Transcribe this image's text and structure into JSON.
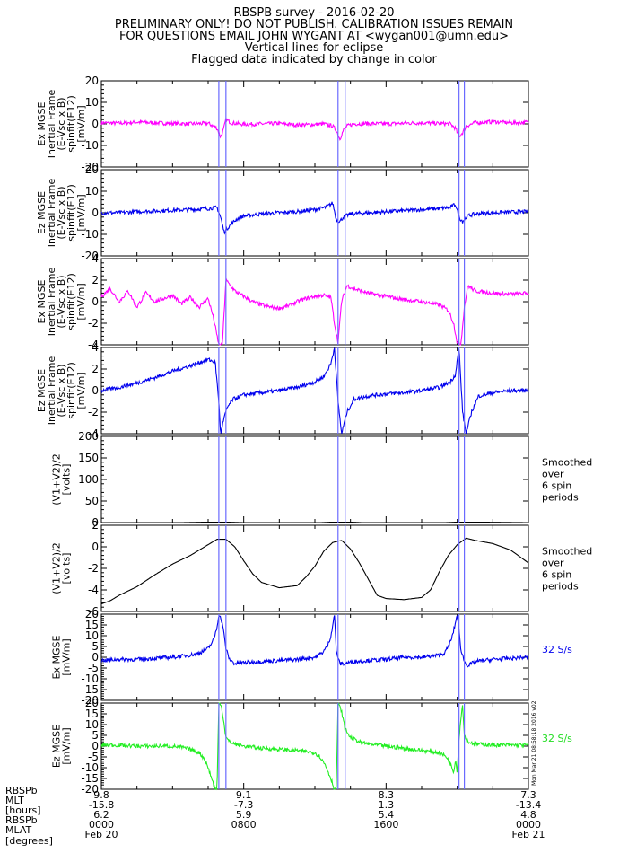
{
  "header": {
    "title": "RBSPB survey  -  2016-02-20",
    "warning1": "PRELIMINARY ONLY! DO NOT PUBLISH. CALIBRATION ISSUES REMAIN",
    "warning2": "FOR QUESTIONS EMAIL JOHN WYGANT AT <wygan001@umn.edu>",
    "note1": "Vertical lines for eclipse",
    "note2": "Flagged data indicated by change in color"
  },
  "side_stamp": "Mon Mar 21 08:58:18 2016 v02",
  "colors": {
    "magenta": "#ff00ff",
    "blue": "#0000ee",
    "green": "#22ee22",
    "black": "#000000",
    "eclipse": "#6a6aff",
    "text_blue": "#0000ee",
    "text_green": "#22dd22"
  },
  "chart_data": {
    "type": "line",
    "x_range_hours": [
      0,
      24
    ],
    "eclipse_lines_hours": [
      6.6,
      7.0,
      13.3,
      13.7,
      20.1,
      20.4
    ],
    "panels": [
      {
        "ylabel": [
          "Ex MGSE",
          "Inertial Frame",
          "(E-Vsc x B)",
          "spinfit(E12)",
          "[mV/m]"
        ],
        "ylim": [
          -20,
          20
        ],
        "yticks": [
          -20,
          -10,
          0,
          10,
          20
        ],
        "color": "magenta",
        "side_text": [],
        "series": {
          "name": "",
          "x": [
            0,
            1,
            2,
            3,
            4,
            5,
            6,
            6.5,
            6.7,
            6.85,
            7.0,
            7.3,
            8,
            9,
            10,
            11,
            12,
            12.5,
            13.0,
            13.2,
            13.4,
            13.6,
            13.8,
            14.2,
            15,
            16,
            17,
            18,
            19,
            19.6,
            19.9,
            20.1,
            20.3,
            20.5,
            21,
            22,
            23,
            24
          ],
          "y": [
            0.5,
            0.3,
            0.8,
            0.5,
            0.2,
            0.0,
            0.3,
            -2,
            -6,
            -3,
            2,
            0.5,
            -0.2,
            0.0,
            0.2,
            -0.5,
            -0.3,
            0.0,
            -1,
            -3,
            -7,
            -3,
            -1,
            0,
            0.2,
            0.0,
            0.3,
            0.5,
            0.2,
            0.0,
            -2,
            -6,
            -4,
            -1,
            0.5,
            1.0,
            0.5,
            0.8
          ]
        }
      },
      {
        "ylabel": [
          "Ez MGSE",
          "Inertial Frame",
          "(E-Vsc x B)",
          "spinfit(E12)",
          "[mV/m]"
        ],
        "ylim": [
          -20,
          20
        ],
        "yticks": [
          -20,
          -10,
          0,
          10,
          20
        ],
        "color": "blue",
        "side_text": [],
        "series": {
          "name": "",
          "x": [
            0,
            1,
            2,
            3,
            4,
            5,
            6,
            6.5,
            6.7,
            6.9,
            7.2,
            7.6,
            8,
            9,
            10,
            11,
            12,
            12.6,
            13.0,
            13.2,
            13.4,
            13.6,
            14,
            15,
            16,
            17,
            18,
            19,
            19.6,
            19.9,
            20.1,
            20.3,
            20.6,
            21,
            22,
            23,
            24
          ],
          "y": [
            0,
            0,
            0.5,
            0.8,
            1.2,
            1.5,
            2.0,
            2.5,
            -2,
            -9,
            -6,
            -3,
            -1.5,
            -0.5,
            0,
            0.5,
            1.5,
            2.5,
            4.5,
            -3,
            -4,
            -2,
            -0.5,
            0,
            0.5,
            1,
            1.5,
            2,
            2.5,
            4,
            -2,
            -4,
            -1.5,
            -0.5,
            0,
            0.3,
            0.5
          ]
        }
      },
      {
        "ylabel": [
          "Ex MGSE",
          "Inertial Frame",
          "(E-Vsc x B)",
          "spinfit(E12)",
          "[mV/m]"
        ],
        "ylim": [
          -4,
          4
        ],
        "yticks": [
          -4,
          -2,
          0,
          2,
          4
        ],
        "color": "magenta",
        "side_text": [],
        "series": {
          "name": "",
          "x": [
            0,
            0.5,
            1,
            1.5,
            2,
            2.5,
            3,
            3.5,
            4,
            4.5,
            5,
            5.5,
            6,
            6.3,
            6.6,
            6.8,
            7.0,
            7.2,
            7.5,
            8,
            8.5,
            9,
            9.5,
            10,
            10.5,
            11,
            11.5,
            12,
            12.5,
            12.9,
            13.1,
            13.3,
            13.5,
            13.8,
            14.2,
            15,
            16,
            17,
            18,
            19,
            19.5,
            19.8,
            20.0,
            20.2,
            20.4,
            20.6,
            21,
            22,
            23,
            24
          ],
          "y": [
            0.5,
            1.2,
            0.0,
            1.0,
            -0.5,
            0.8,
            0.0,
            0.3,
            0.6,
            -0.2,
            0.4,
            -0.5,
            0.3,
            -1.5,
            -4.0,
            -4.0,
            2.0,
            1.6,
            1.0,
            0.5,
            0.0,
            -0.3,
            -0.5,
            -0.6,
            -0.4,
            0.0,
            0.3,
            0.5,
            0.6,
            0.4,
            -2.0,
            -3.8,
            0.0,
            1.5,
            1.2,
            0.8,
            0.5,
            0.2,
            0.0,
            -0.3,
            -0.8,
            -2.0,
            -3.8,
            -4.0,
            -0.5,
            1.5,
            1.0,
            0.8,
            0.7,
            0.8
          ]
        }
      },
      {
        "ylabel": [
          "Ez MGSE",
          "Inertial Frame",
          "(E-Vsc x B)",
          "spinfit(E12)",
          "[mV/m]"
        ],
        "ylim": [
          -4,
          4
        ],
        "yticks": [
          -4,
          -2,
          0,
          2,
          4
        ],
        "color": "blue",
        "side_text": [],
        "series": {
          "name": "",
          "x": [
            0,
            1,
            2,
            3,
            4,
            5,
            5.5,
            6,
            6.4,
            6.6,
            6.7,
            6.9,
            7.1,
            7.4,
            8,
            9,
            10,
            11,
            12,
            12.5,
            12.9,
            13.1,
            13.3,
            13.5,
            13.8,
            14.2,
            15,
            16,
            17,
            18,
            19,
            19.6,
            19.9,
            20.1,
            20.3,
            20.5,
            20.8,
            21.2,
            22,
            23,
            24
          ],
          "y": [
            0,
            0.3,
            0.7,
            1.2,
            1.8,
            2.3,
            2.6,
            2.9,
            2.6,
            -1.0,
            -4.0,
            -2.5,
            -1.5,
            -0.8,
            -0.4,
            -0.2,
            0.0,
            0.3,
            0.8,
            1.3,
            2.5,
            4.0,
            -1.0,
            -4.0,
            -2.0,
            -0.8,
            -0.5,
            -0.3,
            -0.2,
            0.0,
            0.3,
            0.8,
            1.5,
            4.0,
            -2.0,
            -4.0,
            -2.0,
            -0.5,
            -0.2,
            0.0,
            0.0
          ]
        }
      },
      {
        "ylabel": [
          "(V1+V2)/2",
          "[volts]"
        ],
        "ylim": [
          0,
          200
        ],
        "yticks": [
          0,
          50,
          100,
          150,
          200
        ],
        "color": "black",
        "side_text": [
          "Smoothed",
          "over",
          "6 spin",
          "periods"
        ],
        "series": {
          "name": "",
          "x": [
            0,
            3,
            6,
            7,
            9,
            11,
            13,
            14,
            16,
            18,
            20,
            21,
            24
          ],
          "y": [
            -3,
            -1,
            1,
            1,
            -1,
            -2,
            1,
            1,
            -2,
            -2,
            1,
            1,
            0
          ]
        }
      },
      {
        "ylabel": [
          "(V1+V2)/2",
          "[volts]"
        ],
        "ylim": [
          -6,
          2
        ],
        "yticks": [
          -6,
          -4,
          -2,
          0,
          2
        ],
        "color": "black",
        "side_text": [
          "Smoothed",
          "over",
          "6 spin",
          "periods"
        ],
        "series": {
          "name": "",
          "x": [
            0,
            0.5,
            1,
            2,
            3,
            4,
            5,
            5.5,
            6,
            6.5,
            7.0,
            7.5,
            8,
            8.5,
            9,
            10,
            11,
            11.5,
            12,
            12.5,
            13,
            13.5,
            14,
            14.5,
            15,
            15.5,
            16,
            17,
            18,
            18.5,
            19,
            19.5,
            20,
            20.5,
            21,
            22,
            23,
            24
          ],
          "y": [
            -5.3,
            -5.0,
            -4.5,
            -3.7,
            -2.6,
            -1.6,
            -0.8,
            -0.3,
            0.2,
            0.7,
            0.7,
            0.0,
            -1.3,
            -2.5,
            -3.3,
            -3.8,
            -3.6,
            -2.8,
            -1.8,
            -0.4,
            0.4,
            0.6,
            -0.2,
            -1.5,
            -3.0,
            -4.5,
            -4.8,
            -4.9,
            -4.7,
            -4.0,
            -2.3,
            -0.8,
            0.2,
            0.8,
            0.6,
            0.3,
            -0.3,
            -1.5
          ]
        }
      },
      {
        "ylabel": [
          "Ex MGSE",
          "[mV/m]"
        ],
        "ylim": [
          -20,
          20
        ],
        "yticks": [
          -20,
          -15,
          -10,
          -5,
          0,
          5,
          10,
          15,
          20
        ],
        "color": "blue",
        "side_text": [
          "32 S/s"
        ],
        "side_color": "text_blue",
        "series": {
          "name": "",
          "x": [
            0,
            1,
            2,
            3,
            4,
            5,
            5.5,
            6.0,
            6.3,
            6.5,
            6.6,
            6.8,
            7.0,
            7.2,
            7.5,
            8,
            9,
            10,
            11,
            12,
            12.4,
            12.7,
            12.9,
            13.1,
            13.2,
            13.4,
            13.6,
            13.9,
            14.2,
            15,
            16,
            17,
            18,
            19,
            19.3,
            19.5,
            19.7,
            19.9,
            20.0,
            20.2,
            20.4,
            20.6,
            21,
            22,
            23,
            24
          ],
          "y": [
            -1.5,
            -1.0,
            -1.0,
            -0.5,
            0.0,
            1.0,
            2.0,
            4.0,
            8.0,
            14.0,
            20.0,
            16.0,
            4.0,
            -1.0,
            -3.0,
            -2.5,
            -2.0,
            -1.5,
            -1.0,
            0.0,
            2.0,
            5.0,
            10.0,
            20.0,
            3.0,
            -3.0,
            -3.0,
            -2.5,
            -2.0,
            -1.5,
            -1.0,
            0.0,
            0.0,
            1.0,
            2.0,
            5.0,
            9.0,
            16.0,
            20.0,
            4.0,
            -2.0,
            -4.0,
            -2.0,
            -1.0,
            -0.5,
            0.0
          ]
        }
      },
      {
        "ylabel": [
          "Ez MGSE",
          "[mV/m]"
        ],
        "ylim": [
          -20,
          20
        ],
        "yticks": [
          -20,
          -15,
          -10,
          -5,
          0,
          5,
          10,
          15,
          20
        ],
        "color": "green",
        "side_text": [
          "32 S/s"
        ],
        "side_color": "text_green",
        "series": {
          "name": "",
          "x": [
            0,
            1,
            2,
            3,
            4,
            4.5,
            5,
            5.5,
            5.8,
            6.0,
            6.2,
            6.4,
            6.5,
            6.6,
            6.7,
            6.8,
            6.9,
            7.0,
            7.2,
            7.5,
            8,
            9,
            10,
            11,
            12,
            12.3,
            12.6,
            12.9,
            13.1,
            13.2,
            13.3,
            13.5,
            13.7,
            14,
            14.5,
            15,
            16,
            17,
            18,
            19,
            19.4,
            19.6,
            19.8,
            19.9,
            20.0,
            20.1,
            20.3,
            20.4,
            20.6,
            21,
            22,
            23,
            24
          ],
          "y": [
            0.5,
            0.5,
            0.0,
            0.0,
            0.0,
            -0.5,
            -1.5,
            -3.0,
            -6.0,
            -10.0,
            -15.0,
            -20.0,
            -20.0,
            20.0,
            20.0,
            16.0,
            10.0,
            4.0,
            2.0,
            1.0,
            0.0,
            -1.0,
            -1.5,
            -2.0,
            -3.0,
            -5.0,
            -9.0,
            -15.0,
            -20.0,
            -20.0,
            20.0,
            16.0,
            8.0,
            4.0,
            2.0,
            1.0,
            0.0,
            -1.0,
            -2.0,
            -3.0,
            -5.0,
            -8.0,
            -12.0,
            -6.0,
            -12.0,
            4.0,
            20.0,
            5.0,
            2.0,
            1.0,
            0.5,
            0.5,
            0.5
          ]
        }
      }
    ],
    "x_axis": {
      "row_labels": [
        "RBSPb",
        "MLT",
        "[hours]",
        "RBSPb",
        "MLAT",
        "[degrees]"
      ],
      "tick_hours": [
        0,
        8,
        16,
        24
      ],
      "columns": [
        {
          "l": "9.8",
          "mlt": "-15.8",
          "mlat": "6.2",
          "time": "0000",
          "date": "Feb 20"
        },
        {
          "l": "9.1",
          "mlt": "-7.3",
          "mlat": "5.9",
          "time": "0800",
          "date": ""
        },
        {
          "l": "8.3",
          "mlt": "1.3",
          "mlat": "5.4",
          "time": "1600",
          "date": ""
        },
        {
          "l": "7.3",
          "mlt": "-13.4",
          "mlat": "4.8",
          "time": "0000",
          "date": "Feb 21"
        }
      ]
    }
  }
}
